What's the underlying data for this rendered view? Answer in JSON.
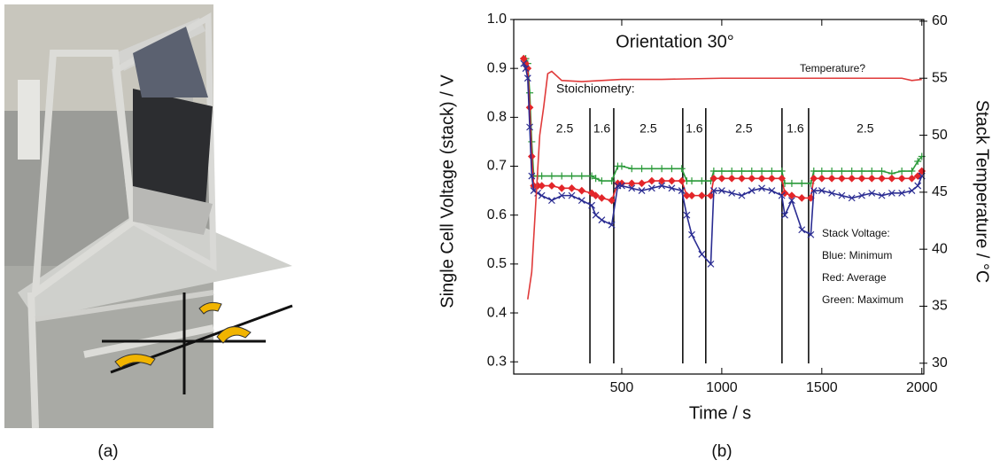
{
  "panels": {
    "a": "(a)",
    "b": "(b)"
  },
  "chart_data": {
    "type": "line",
    "title": "Orientation 30°",
    "x_label": "Time / s",
    "y_label": "Single Cell Voltage (stack) / V",
    "y2_label": "Stack Temperature / °C",
    "xlim": [
      -40,
      2010
    ],
    "xticks": [
      500,
      1000,
      1500,
      2000
    ],
    "ylim": [
      0.275,
      1.0
    ],
    "yticks": [
      0.3,
      0.4,
      0.5,
      0.6,
      0.7,
      0.8,
      0.9,
      {
        "value": 1,
        "label": "1.0"
      }
    ],
    "y2lim": [
      29.05,
      60.15
    ],
    "y2ticks": [
      30,
      35,
      40,
      45,
      50,
      55,
      60
    ],
    "series": [
      {
        "name": "Green: Maximum",
        "color": "#2b9a3a",
        "marker": "plus",
        "x": [
          10,
          20,
          30,
          40,
          50,
          60,
          80,
          100,
          150,
          200,
          250,
          300,
          350,
          370,
          400,
          450,
          480,
          500,
          550,
          600,
          650,
          700,
          750,
          800,
          825,
          850,
          900,
          945,
          960,
          1000,
          1050,
          1100,
          1150,
          1200,
          1250,
          1300,
          1315,
          1350,
          1400,
          1445,
          1460,
          1500,
          1550,
          1600,
          1650,
          1700,
          1750,
          1800,
          1850,
          1900,
          1950,
          1980,
          2000
        ],
        "values": [
          0.92,
          0.92,
          0.91,
          0.85,
          0.75,
          0.68,
          0.68,
          0.68,
          0.68,
          0.68,
          0.68,
          0.68,
          0.68,
          0.675,
          0.67,
          0.67,
          0.7,
          0.7,
          0.695,
          0.695,
          0.695,
          0.695,
          0.695,
          0.695,
          0.67,
          0.67,
          0.67,
          0.67,
          0.69,
          0.69,
          0.69,
          0.69,
          0.69,
          0.69,
          0.69,
          0.69,
          0.665,
          0.665,
          0.665,
          0.665,
          0.69,
          0.69,
          0.69,
          0.69,
          0.69,
          0.69,
          0.69,
          0.69,
          0.685,
          0.69,
          0.69,
          0.71,
          0.72
        ]
      },
      {
        "name": "Red: Average",
        "color": "#e3262a",
        "marker": "diamond",
        "x": [
          10,
          20,
          30,
          40,
          50,
          60,
          80,
          100,
          150,
          200,
          250,
          300,
          350,
          370,
          400,
          450,
          480,
          500,
          550,
          600,
          650,
          700,
          750,
          800,
          825,
          850,
          900,
          945,
          960,
          1000,
          1050,
          1100,
          1150,
          1200,
          1250,
          1300,
          1315,
          1350,
          1400,
          1445,
          1460,
          1500,
          1550,
          1600,
          1650,
          1700,
          1750,
          1800,
          1850,
          1900,
          1950,
          1980,
          2000
        ],
        "values": [
          0.92,
          0.91,
          0.9,
          0.82,
          0.72,
          0.66,
          0.66,
          0.66,
          0.66,
          0.655,
          0.655,
          0.65,
          0.645,
          0.64,
          0.635,
          0.63,
          0.665,
          0.665,
          0.665,
          0.665,
          0.67,
          0.67,
          0.67,
          0.67,
          0.64,
          0.64,
          0.64,
          0.64,
          0.675,
          0.675,
          0.675,
          0.675,
          0.675,
          0.675,
          0.675,
          0.675,
          0.645,
          0.64,
          0.635,
          0.635,
          0.675,
          0.675,
          0.675,
          0.675,
          0.675,
          0.675,
          0.675,
          0.675,
          0.675,
          0.675,
          0.675,
          0.68,
          0.69
        ]
      },
      {
        "name": "Blue: Minimum",
        "color": "#2a2c92",
        "marker": "cross",
        "x": [
          10,
          20,
          30,
          40,
          50,
          60,
          80,
          100,
          150,
          200,
          250,
          300,
          350,
          370,
          400,
          450,
          480,
          500,
          550,
          600,
          650,
          700,
          750,
          800,
          825,
          850,
          900,
          945,
          960,
          1000,
          1050,
          1100,
          1150,
          1200,
          1250,
          1300,
          1315,
          1350,
          1400,
          1445,
          1460,
          1500,
          1550,
          1600,
          1650,
          1700,
          1750,
          1800,
          1850,
          1900,
          1950,
          1980,
          2000
        ],
        "values": [
          0.91,
          0.9,
          0.88,
          0.78,
          0.68,
          0.65,
          0.645,
          0.64,
          0.63,
          0.64,
          0.64,
          0.63,
          0.62,
          0.6,
          0.59,
          0.58,
          0.66,
          0.66,
          0.655,
          0.65,
          0.655,
          0.66,
          0.655,
          0.65,
          0.6,
          0.56,
          0.52,
          0.5,
          0.65,
          0.65,
          0.645,
          0.64,
          0.65,
          0.655,
          0.65,
          0.64,
          0.6,
          0.63,
          0.57,
          0.56,
          0.65,
          0.65,
          0.645,
          0.64,
          0.635,
          0.64,
          0.645,
          0.64,
          0.645,
          0.645,
          0.65,
          0.66,
          0.68
        ]
      },
      {
        "name": "Temperature?",
        "color": "#e03a3a",
        "axis": "y2",
        "x": [
          30,
          50,
          70,
          90,
          110,
          130,
          150,
          200,
          300,
          400,
          500,
          700,
          1000,
          1500,
          1900,
          1950,
          2000
        ],
        "values": [
          35.6,
          38,
          44,
          50,
          52.5,
          55.4,
          55.6,
          54.8,
          54.7,
          54.8,
          54.9,
          54.9,
          55,
          55,
          55,
          54.8,
          54.9
        ]
      }
    ],
    "legend_title": "Stack Voltage:",
    "stoichiometry": {
      "title": "Stoichiometry:",
      "changes": [
        341,
        460,
        805,
        920,
        1301,
        1434
      ],
      "labels": [
        "2.5",
        "1.6",
        "2.5",
        "1.6",
        "2.5",
        "1.6",
        "2.5"
      ]
    }
  }
}
